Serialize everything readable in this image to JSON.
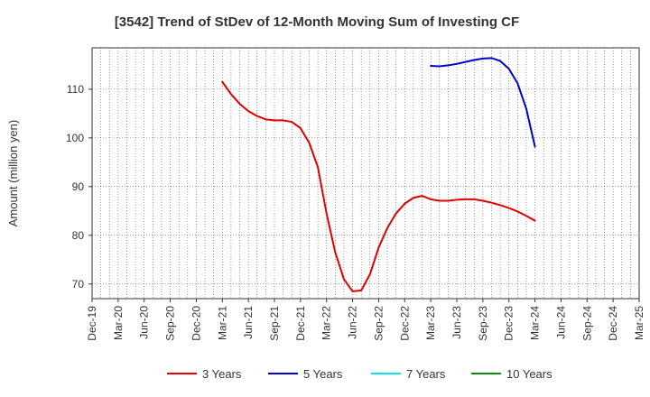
{
  "chart_data": {
    "type": "line",
    "title": "[3542]  Trend of StDev of 12-Month Moving Sum of Investing CF",
    "xlabel": "",
    "ylabel": "Amount (million yen)",
    "ylim": [
      67,
      118.5
    ],
    "yticks": [
      70,
      80,
      90,
      100,
      110
    ],
    "x_tick_labels": [
      "Dec-19",
      "Mar-20",
      "Jun-20",
      "Sep-20",
      "Dec-20",
      "Mar-21",
      "Jun-21",
      "Sep-21",
      "Dec-21",
      "Mar-22",
      "Jun-22",
      "Sep-22",
      "Dec-22",
      "Mar-23",
      "Jun-23",
      "Sep-23",
      "Dec-23",
      "Mar-24",
      "Jun-24",
      "Sep-24",
      "Dec-24",
      "Mar-25"
    ],
    "grid": true,
    "legend_position": "bottom",
    "series": [
      {
        "name": "3 Years",
        "color": "#e00000",
        "x": [
          "2021-03",
          "2021-04",
          "2021-05",
          "2021-06",
          "2021-07",
          "2021-08",
          "2021-09",
          "2021-10",
          "2021-11",
          "2021-12",
          "2022-01",
          "2022-02",
          "2022-03",
          "2022-04",
          "2022-05",
          "2022-06",
          "2022-07",
          "2022-08",
          "2022-09",
          "2022-10",
          "2022-11",
          "2022-12",
          "2023-01",
          "2023-02",
          "2023-03",
          "2023-04",
          "2023-05",
          "2023-06",
          "2023-07",
          "2023-08",
          "2023-09",
          "2023-10",
          "2023-11",
          "2023-12",
          "2024-01",
          "2024-02",
          "2024-03"
        ],
        "values": [
          111.5,
          109.0,
          107.0,
          105.5,
          104.5,
          103.8,
          103.6,
          103.6,
          103.3,
          102.0,
          99.0,
          94.0,
          84.5,
          76.5,
          71.0,
          68.5,
          68.7,
          72.0,
          77.5,
          81.5,
          84.5,
          86.5,
          87.7,
          88.1,
          87.4,
          87.1,
          87.1,
          87.3,
          87.4,
          87.4,
          87.1,
          86.7,
          86.2,
          85.6,
          84.9,
          84.0,
          83.0
        ]
      },
      {
        "name": "5 Years",
        "color": "#0000cc",
        "x": [
          "2023-03",
          "2023-04",
          "2023-05",
          "2023-06",
          "2023-07",
          "2023-08",
          "2023-09",
          "2023-10",
          "2023-11",
          "2023-12",
          "2024-01",
          "2024-02",
          "2024-03"
        ],
        "values": [
          114.8,
          114.7,
          114.9,
          115.2,
          115.6,
          116.0,
          116.3,
          116.4,
          115.8,
          114.2,
          111.2,
          106.0,
          98.2
        ]
      },
      {
        "name": "7 Years",
        "color": "#00e5ee",
        "x": [],
        "values": []
      },
      {
        "name": "10 Years",
        "color": "#118811",
        "x": [],
        "values": []
      }
    ]
  }
}
